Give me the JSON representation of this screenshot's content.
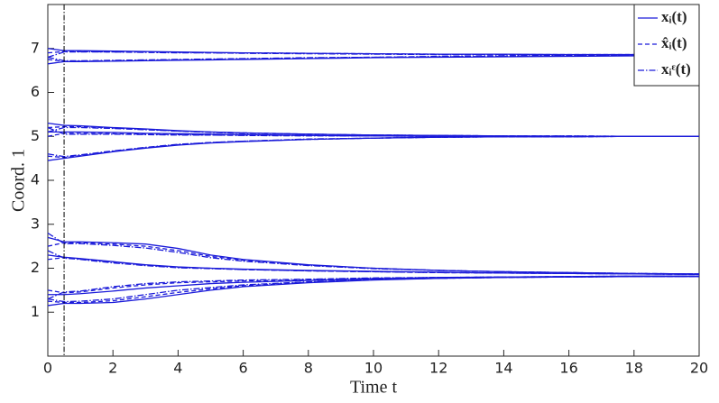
{
  "chart_data": {
    "type": "line",
    "xlabel": "Time t",
    "ylabel": "Coord. 1",
    "x": [
      0,
      0.5,
      1,
      2,
      3,
      4,
      5,
      6,
      8,
      10,
      12,
      14,
      16,
      18,
      20
    ],
    "xlim": [
      0,
      20
    ],
    "ylim": [
      0,
      8
    ],
    "xticks": [
      0,
      2,
      4,
      6,
      8,
      10,
      12,
      14,
      16,
      18,
      20
    ],
    "yticks": [
      1,
      2,
      3,
      4,
      5,
      6,
      7
    ],
    "vline": 0.5,
    "legend": "upper right",
    "series": [
      {
        "name": "xᵢ(t)",
        "color": "#1a1ad9",
        "dash": "solid",
        "trajectories": [
          [
            7.0,
            6.95,
            6.95,
            6.94,
            6.93,
            6.92,
            6.91,
            6.9,
            6.89,
            6.88,
            6.87,
            6.87,
            6.86,
            6.86,
            6.86
          ],
          [
            6.65,
            6.7,
            6.7,
            6.71,
            6.72,
            6.73,
            6.74,
            6.75,
            6.77,
            6.79,
            6.8,
            6.81,
            6.82,
            6.83,
            6.83
          ],
          [
            5.3,
            5.25,
            5.24,
            5.2,
            5.17,
            5.13,
            5.1,
            5.08,
            5.05,
            5.03,
            5.02,
            5.01,
            5.0,
            5.0,
            5.0
          ],
          [
            5.1,
            5.1,
            5.1,
            5.09,
            5.07,
            5.06,
            5.05,
            5.04,
            5.02,
            5.01,
            5.0,
            5.0,
            5.0,
            5.0,
            5.0
          ],
          [
            4.45,
            4.5,
            4.55,
            4.65,
            4.73,
            4.8,
            4.85,
            4.88,
            4.93,
            4.96,
            4.98,
            4.99,
            4.99,
            5.0,
            5.0
          ],
          [
            2.7,
            2.6,
            2.6,
            2.58,
            2.55,
            2.45,
            2.3,
            2.2,
            2.08,
            2.0,
            1.95,
            1.92,
            1.9,
            1.88,
            1.87
          ],
          [
            2.3,
            2.25,
            2.22,
            2.15,
            2.08,
            2.03,
            2.0,
            1.98,
            1.95,
            1.93,
            1.91,
            1.89,
            1.88,
            1.87,
            1.86
          ],
          [
            1.4,
            1.4,
            1.42,
            1.48,
            1.55,
            1.6,
            1.65,
            1.68,
            1.72,
            1.76,
            1.79,
            1.8,
            1.81,
            1.82,
            1.82
          ],
          [
            1.15,
            1.2,
            1.2,
            1.22,
            1.3,
            1.4,
            1.5,
            1.58,
            1.67,
            1.73,
            1.77,
            1.79,
            1.8,
            1.81,
            1.81
          ]
        ]
      },
      {
        "name": "x̂ᵢ(t)",
        "color": "#1a1ad9",
        "dash": "dashed",
        "trajectories": [
          [
            6.9,
            6.93,
            6.93,
            6.92,
            6.92,
            6.91,
            6.9,
            6.9,
            6.89,
            6.88,
            6.87,
            6.86,
            6.86,
            6.86,
            6.85
          ],
          [
            6.75,
            6.71,
            6.71,
            6.72,
            6.73,
            6.74,
            6.75,
            6.76,
            6.78,
            6.8,
            6.81,
            6.82,
            6.83,
            6.84,
            6.84
          ],
          [
            5.2,
            5.22,
            5.22,
            5.19,
            5.16,
            5.12,
            5.1,
            5.08,
            5.05,
            5.03,
            5.02,
            5.01,
            5.01,
            5.0,
            5.0
          ],
          [
            5.0,
            5.07,
            5.07,
            5.06,
            5.05,
            5.04,
            5.03,
            5.03,
            5.02,
            5.01,
            5.0,
            5.0,
            5.0,
            5.0,
            5.0
          ],
          [
            4.55,
            4.52,
            4.56,
            4.66,
            4.74,
            4.81,
            4.86,
            4.89,
            4.93,
            4.96,
            4.98,
            4.99,
            4.99,
            5.0,
            5.0
          ],
          [
            2.5,
            2.58,
            2.58,
            2.55,
            2.5,
            2.4,
            2.27,
            2.18,
            2.07,
            2.0,
            1.95,
            1.92,
            1.9,
            1.88,
            1.87
          ],
          [
            2.2,
            2.24,
            2.21,
            2.14,
            2.07,
            2.02,
            2.0,
            1.97,
            1.94,
            1.92,
            1.9,
            1.89,
            1.88,
            1.87,
            1.86
          ],
          [
            1.5,
            1.44,
            1.46,
            1.55,
            1.62,
            1.67,
            1.69,
            1.71,
            1.74,
            1.77,
            1.79,
            1.8,
            1.81,
            1.82,
            1.82
          ],
          [
            1.25,
            1.22,
            1.22,
            1.26,
            1.35,
            1.45,
            1.53,
            1.6,
            1.68,
            1.74,
            1.77,
            1.79,
            1.8,
            1.81,
            1.81
          ]
        ]
      },
      {
        "name": "xᵢᵋ(t)",
        "color": "#1a1ad9",
        "dash": "dashdot",
        "trajectories": [
          [
            6.8,
            6.92,
            6.92,
            6.92,
            6.91,
            6.9,
            6.9,
            6.89,
            6.88,
            6.87,
            6.86,
            6.86,
            6.85,
            6.85,
            6.85
          ],
          [
            6.8,
            6.72,
            6.72,
            6.73,
            6.74,
            6.75,
            6.76,
            6.77,
            6.79,
            6.8,
            6.82,
            6.83,
            6.84,
            6.84,
            6.85
          ],
          [
            5.1,
            5.2,
            5.2,
            5.18,
            5.15,
            5.12,
            5.09,
            5.07,
            5.05,
            5.03,
            5.02,
            5.01,
            5.01,
            5.0,
            5.0
          ],
          [
            5.2,
            5.05,
            5.05,
            5.05,
            5.04,
            5.03,
            5.03,
            5.02,
            5.01,
            5.01,
            5.0,
            5.0,
            5.0,
            5.0,
            5.0
          ],
          [
            4.6,
            4.54,
            4.58,
            4.67,
            4.75,
            4.82,
            4.86,
            4.89,
            4.94,
            4.96,
            4.98,
            4.99,
            4.99,
            5.0,
            5.0
          ],
          [
            2.8,
            2.56,
            2.56,
            2.52,
            2.46,
            2.36,
            2.24,
            2.16,
            2.06,
            1.99,
            1.95,
            1.92,
            1.9,
            1.88,
            1.87
          ],
          [
            2.4,
            2.23,
            2.2,
            2.12,
            2.06,
            2.01,
            1.99,
            1.97,
            1.94,
            1.92,
            1.9,
            1.89,
            1.88,
            1.87,
            1.86
          ],
          [
            1.3,
            1.46,
            1.48,
            1.58,
            1.65,
            1.69,
            1.71,
            1.73,
            1.75,
            1.78,
            1.79,
            1.8,
            1.81,
            1.82,
            1.82
          ],
          [
            1.3,
            1.24,
            1.25,
            1.3,
            1.4,
            1.5,
            1.56,
            1.62,
            1.69,
            1.74,
            1.77,
            1.79,
            1.8,
            1.81,
            1.81
          ]
        ]
      }
    ]
  }
}
